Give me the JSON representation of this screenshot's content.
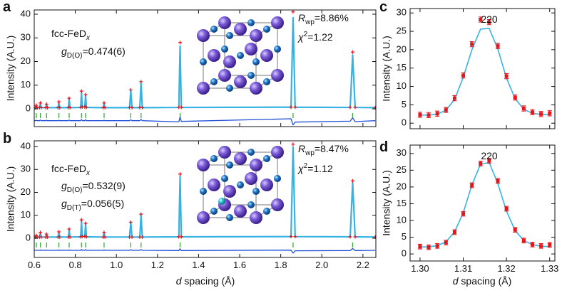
{
  "chart_data": [
    {
      "type": "rietveld",
      "label": "a",
      "ylabel": "Intensity (A.U.)",
      "xlim": [
        0.6,
        2.263
      ],
      "ylim": [
        -7.5,
        41.8
      ],
      "xticks": [
        0.6,
        0.8,
        {
          "value": 1,
          "label": "1.0"
        },
        1.2,
        1.4,
        1.6,
        1.8,
        {
          "value": 2,
          "label": "2.0"
        },
        2.2
      ],
      "show_xtick_labels": false,
      "yticks": [
        0,
        10,
        20,
        30,
        40
      ],
      "annotations": {
        "phase": [
          "fcc-FeD",
          "x"
        ],
        "occupancies": [
          [
            "g",
            "D(O)",
            "=0.474(6)"
          ]
        ],
        "rwp": [
          "R",
          "wp",
          "=8.86%"
        ],
        "chi2": [
          "χ",
          "2",
          "=1.22"
        ]
      },
      "x": [
        0.6,
        0.606,
        0.61,
        0.614,
        0.626,
        0.63,
        0.634,
        0.656,
        0.66,
        0.664,
        0.716,
        0.72,
        0.724,
        0.766,
        0.77,
        0.774,
        0.826,
        0.83,
        0.834,
        0.846,
        0.85,
        0.854,
        0.936,
        0.94,
        0.944,
        1.064,
        1.07,
        1.076,
        1.114,
        1.12,
        1.126,
        1.304,
        1.31,
        1.316,
        1.85,
        1.86,
        1.87,
        2.138,
        2.15,
        2.162,
        2.26
      ],
      "observed": {
        "color": "#e3161c",
        "values": [
          0.5,
          0.5,
          1.5,
          0.5,
          0.5,
          2.5,
          0.5,
          0.5,
          2,
          0.5,
          0.5,
          3,
          0.5,
          0.5,
          4.5,
          0.5,
          0.6,
          7.5,
          0.8,
          0.8,
          6,
          0.6,
          0.5,
          2.5,
          0.5,
          0.5,
          8,
          0.5,
          0.5,
          11.5,
          0.5,
          0.6,
          28,
          0.6,
          0.7,
          41,
          0.7,
          0.6,
          24,
          0.6,
          0.5
        ]
      },
      "calculated": {
        "color": "#36b3e4",
        "values": [
          0.5,
          0.5,
          1.3,
          0.5,
          0.5,
          2.2,
          0.5,
          0.5,
          1.8,
          0.5,
          0.5,
          2.8,
          0.5,
          0.5,
          4.2,
          0.5,
          0.6,
          7,
          0.8,
          0.8,
          5.6,
          0.6,
          0.5,
          2.3,
          0.5,
          0.5,
          7.6,
          0.5,
          0.5,
          11,
          0.5,
          0.6,
          26.5,
          0.6,
          0.7,
          38.5,
          0.7,
          0.6,
          22.8,
          0.6,
          0.5
        ]
      },
      "difference": {
        "color": "#1f4fd8",
        "values": [
          -5,
          -5,
          -4.8,
          -5,
          -5,
          -4.7,
          -5,
          -5,
          -4.8,
          -5,
          -5,
          -4.8,
          -5,
          -5,
          -4.7,
          -5,
          -5,
          -4.5,
          -5,
          -5,
          -4.6,
          -5,
          -5,
          -4.8,
          -5,
          -5,
          -4.6,
          -5,
          -5,
          -4.5,
          -5,
          -5.5,
          -3.5,
          -5.3,
          -4.2,
          -6.8,
          -5.6,
          -5.2,
          -3.8,
          -5.4,
          -5
        ]
      },
      "bragg_positions": {
        "color": "#3aaa35",
        "values": [
          0.61,
          0.63,
          0.66,
          0.72,
          0.77,
          0.83,
          0.85,
          0.94,
          1.07,
          1.12,
          1.31,
          1.86,
          2.15
        ]
      }
    },
    {
      "type": "rietveld",
      "label": "b",
      "ylabel": "Intensity (A.U.)",
      "xlabel": [
        "d",
        " spacing (Å)"
      ],
      "xlim": [
        0.6,
        2.263
      ],
      "ylim": [
        -8.4,
        42.5
      ],
      "xticks": [
        0.6,
        0.8,
        {
          "value": 1,
          "label": "1.0"
        },
        1.2,
        1.4,
        1.6,
        1.8,
        {
          "value": 2,
          "label": "2.0"
        },
        2.2
      ],
      "show_xtick_labels": true,
      "yticks": [
        0,
        10,
        20,
        30,
        40
      ],
      "annotations": {
        "phase": [
          "fcc-FeD",
          "x"
        ],
        "occupancies": [
          [
            "g",
            "D(O)",
            "=0.532(9)"
          ],
          [
            "g",
            "D(T)",
            "=0.056(5)"
          ]
        ],
        "rwp": [
          "R",
          "wp",
          "=8.47%"
        ],
        "chi2": [
          "χ",
          "2",
          "=1.12"
        ]
      },
      "x": [
        0.6,
        0.606,
        0.61,
        0.614,
        0.626,
        0.63,
        0.634,
        0.656,
        0.66,
        0.664,
        0.716,
        0.72,
        0.724,
        0.766,
        0.77,
        0.774,
        0.826,
        0.83,
        0.834,
        0.846,
        0.85,
        0.854,
        0.936,
        0.94,
        0.944,
        1.064,
        1.07,
        1.076,
        1.114,
        1.12,
        1.126,
        1.304,
        1.31,
        1.316,
        1.85,
        1.86,
        1.87,
        2.138,
        2.15,
        2.162,
        2.26
      ],
      "observed": {
        "color": "#e3161c",
        "values": [
          0.5,
          0.5,
          1.2,
          0.5,
          0.5,
          2.5,
          0.5,
          0.5,
          1.8,
          0.5,
          0.5,
          2.8,
          0.5,
          0.5,
          4,
          0.5,
          0.6,
          8,
          0.8,
          0.8,
          6.5,
          0.6,
          0.5,
          2.5,
          0.5,
          0.5,
          7,
          0.5,
          0.5,
          10.5,
          0.5,
          0.6,
          28,
          0.6,
          0.7,
          41,
          0.7,
          0.6,
          25,
          0.6,
          0.5
        ]
      },
      "calculated": {
        "color": "#36b3e4",
        "values": [
          0.5,
          0.5,
          1.1,
          0.5,
          0.5,
          2.3,
          0.5,
          0.5,
          1.7,
          0.5,
          0.5,
          2.6,
          0.5,
          0.5,
          3.8,
          0.5,
          0.6,
          7.6,
          0.8,
          0.8,
          6.2,
          0.6,
          0.5,
          2.3,
          0.5,
          0.5,
          6.7,
          0.5,
          0.5,
          10.1,
          0.5,
          0.6,
          27.2,
          0.6,
          0.7,
          39.8,
          0.7,
          0.6,
          24.2,
          0.6,
          0.5
        ]
      },
      "difference": {
        "color": "#1f4fd8",
        "values": [
          -5.3,
          -5.3,
          -5.2,
          -5.3,
          -5.3,
          -5.1,
          -5.3,
          -5.3,
          -5.2,
          -5.3,
          -5.3,
          -5.1,
          -5.3,
          -5.3,
          -5.1,
          -5.3,
          -5.3,
          -4.9,
          -5.3,
          -5.3,
          -5,
          -5.3,
          -5.3,
          -5.1,
          -5.3,
          -5.3,
          -5,
          -5.3,
          -5.3,
          -4.9,
          -5.3,
          -5.4,
          -4.6,
          -5.4,
          -5.2,
          -6.5,
          -5.5,
          -5.4,
          -4.5,
          -5.4,
          -5.3
        ]
      },
      "bragg_positions": {
        "color": "#3aaa35",
        "values": [
          0.61,
          0.63,
          0.66,
          0.72,
          0.77,
          0.83,
          0.85,
          0.94,
          1.07,
          1.12,
          1.31,
          1.86,
          2.15
        ]
      }
    },
    {
      "type": "errorbar",
      "label": "c",
      "ylabel": "Intensity (A.U.)",
      "reflection": "220",
      "xlim": [
        1.2977,
        1.3312
      ],
      "ylim": [
        -1.5,
        31.2
      ],
      "xticks": [
        {
          "value": 1.3,
          "label": "1.30"
        },
        1.31,
        1.32,
        1.33
      ],
      "show_xtick_labels": false,
      "yticks": [
        0,
        5,
        10,
        15,
        20,
        25,
        30
      ],
      "x": [
        1.3,
        1.302,
        1.304,
        1.306,
        1.308,
        1.31,
        1.312,
        1.314,
        1.316,
        1.318,
        1.32,
        1.322,
        1.324,
        1.326,
        1.328,
        1.33
      ],
      "observed": {
        "color": "#e3161c",
        "values": [
          2.3,
          2.2,
          2.6,
          3.6,
          6.8,
          13.0,
          21.5,
          28.2,
          27.5,
          21.0,
          12.8,
          7.0,
          4.0,
          3.0,
          2.5,
          2.7
        ],
        "errors": [
          0.7,
          0.7,
          0.7,
          0.7,
          0.7,
          0.7,
          0.7,
          0.7,
          0.7,
          0.7,
          0.7,
          0.7,
          0.7,
          0.7,
          0.7,
          0.7
        ]
      },
      "calculated": {
        "color": "#36b3e4",
        "values": [
          2.2,
          2.2,
          2.5,
          3.5,
          6.5,
          12.5,
          20.0,
          25.6,
          25.8,
          20.2,
          12.3,
          6.7,
          3.8,
          2.7,
          2.4,
          2.3
        ]
      }
    },
    {
      "type": "errorbar",
      "label": "d",
      "ylabel": "Intensity (A.U.)",
      "xlabel": [
        "d",
        " spacing (Å)"
      ],
      "reflection": "220",
      "xlim": [
        1.2977,
        1.3312
      ],
      "ylim": [
        -2.1,
        32.5
      ],
      "xticks": [
        {
          "value": 1.3,
          "label": "1.30"
        },
        1.31,
        1.32,
        1.33
      ],
      "show_xtick_labels": true,
      "yticks": [
        0,
        5,
        10,
        15,
        20,
        25,
        30
      ],
      "x": [
        1.3,
        1.302,
        1.304,
        1.306,
        1.308,
        1.31,
        1.312,
        1.314,
        1.316,
        1.318,
        1.32,
        1.322,
        1.324,
        1.326,
        1.328,
        1.33
      ],
      "observed": {
        "color": "#e3161c",
        "values": [
          2.2,
          2.0,
          2.4,
          3.4,
          6.5,
          12.0,
          20.5,
          27.0,
          27.8,
          21.8,
          13.5,
          7.2,
          4.0,
          2.8,
          2.4,
          2.7
        ],
        "errors": [
          0.7,
          0.7,
          0.7,
          0.7,
          0.7,
          0.7,
          0.7,
          0.7,
          0.7,
          0.7,
          0.7,
          0.7,
          0.7,
          0.7,
          0.7,
          0.7
        ]
      },
      "calculated": {
        "color": "#36b3e4",
        "values": [
          2.1,
          2.1,
          2.5,
          3.6,
          6.6,
          12.3,
          20.6,
          26.8,
          27.3,
          21.0,
          12.8,
          7.0,
          4.0,
          2.8,
          2.3,
          2.2
        ]
      }
    }
  ]
}
